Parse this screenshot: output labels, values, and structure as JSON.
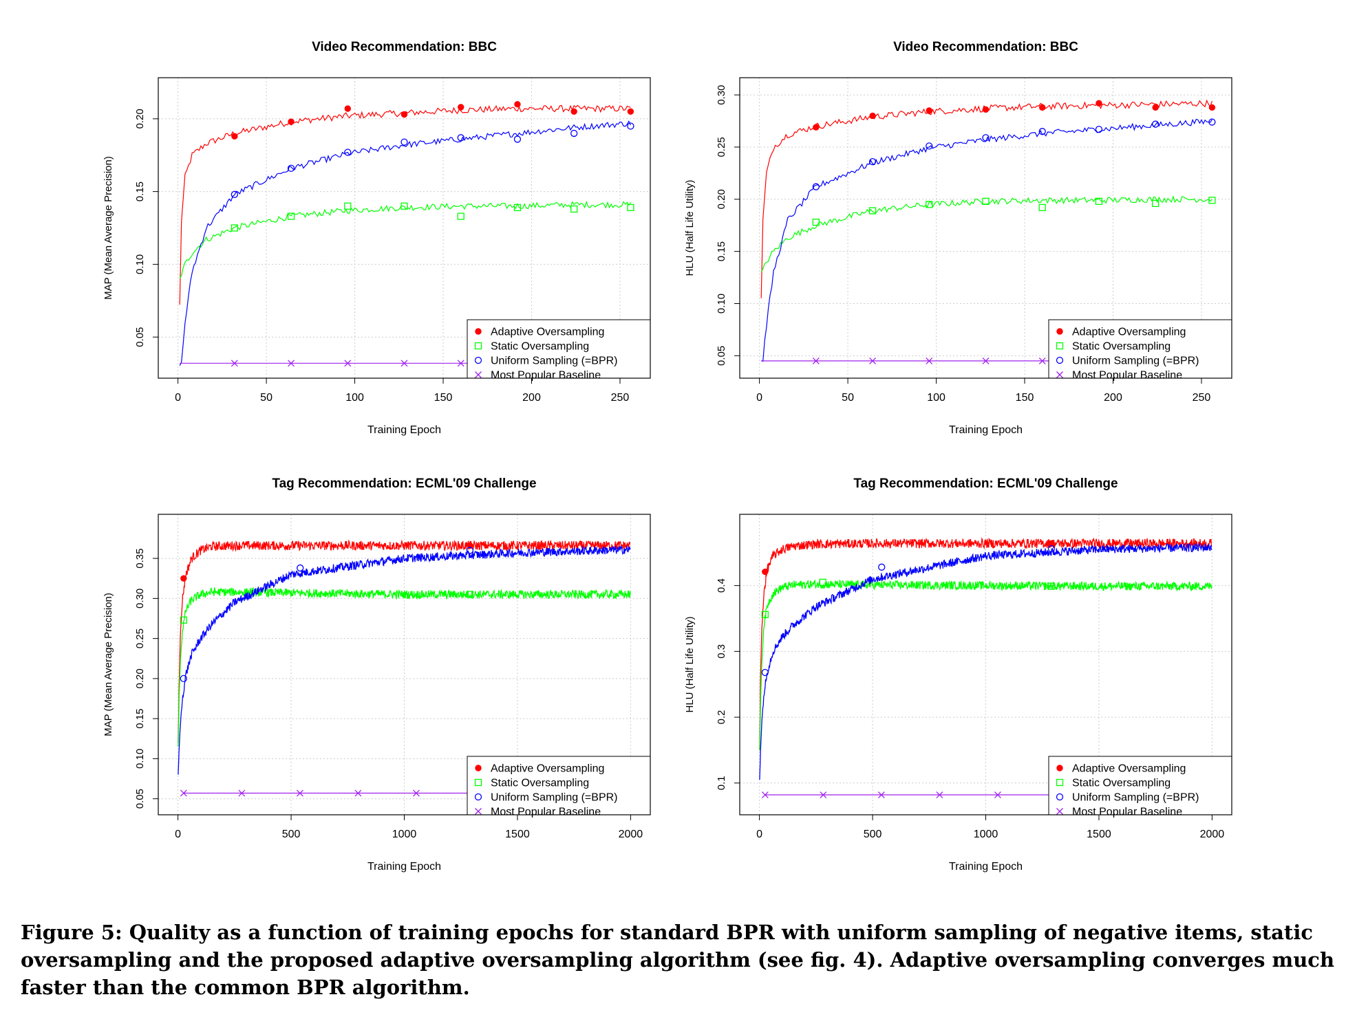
{
  "colors": {
    "adaptive": "#ff0000",
    "static": "#00ff00",
    "uniform": "#0000ff",
    "baseline": "#a020f0",
    "grid": "#cccccc"
  },
  "legend": {
    "placement": "bottom-right",
    "entries": [
      {
        "label": "Adaptive Oversampling",
        "marker": "filled-circle",
        "color": "#ff0000"
      },
      {
        "label": "Static Oversampling",
        "marker": "open-square",
        "color": "#00ff00"
      },
      {
        "label": "Uniform Sampling (=BPR)",
        "marker": "open-circle",
        "color": "#0000ff"
      },
      {
        "label": "Most Popular Baseline",
        "marker": "x-cross",
        "color": "#a020f0"
      }
    ]
  },
  "chart_data": [
    {
      "type": "line",
      "title": "Video Recommendation: BBC",
      "xlabel": "Training Epoch",
      "ylabel": "MAP (Mean Average Precision)",
      "xlim": [
        0,
        256
      ],
      "ylim": [
        0.03,
        0.22
      ],
      "xticks": [
        0,
        50,
        100,
        150,
        200,
        250
      ],
      "yticks": [
        0.05,
        0.1,
        0.15,
        0.2
      ],
      "ytick_labels": [
        "0.05",
        "0.10",
        "0.15",
        "0.20"
      ],
      "grid": true,
      "legend": "bottom-right",
      "series": [
        {
          "name": "Adaptive Oversampling",
          "key": "adaptive",
          "marker": "filled-circle",
          "x": [
            1,
            2,
            4,
            8,
            16,
            32,
            64,
            96,
            128,
            160,
            192,
            224,
            256
          ],
          "values": [
            0.072,
            0.13,
            0.16,
            0.175,
            0.183,
            0.19,
            0.198,
            0.202,
            0.204,
            0.206,
            0.207,
            0.207,
            0.207
          ],
          "markers_x": [
            32,
            64,
            96,
            128,
            160,
            192,
            224,
            256
          ],
          "markers_y": [
            0.188,
            0.198,
            0.207,
            0.203,
            0.208,
            0.21,
            0.205,
            0.205
          ]
        },
        {
          "name": "Static Oversampling",
          "key": "static",
          "marker": "open-square",
          "x": [
            1,
            2,
            4,
            8,
            16,
            32,
            64,
            96,
            128,
            160,
            192,
            224,
            256
          ],
          "values": [
            0.09,
            0.093,
            0.1,
            0.108,
            0.117,
            0.125,
            0.133,
            0.137,
            0.139,
            0.14,
            0.14,
            0.141,
            0.141
          ],
          "markers_x": [
            32,
            64,
            96,
            128,
            160,
            192,
            224,
            256
          ],
          "markers_y": [
            0.125,
            0.133,
            0.14,
            0.14,
            0.133,
            0.139,
            0.138,
            0.139
          ]
        },
        {
          "name": "Uniform Sampling (=BPR)",
          "key": "uniform",
          "marker": "open-circle",
          "x": [
            1,
            2,
            4,
            8,
            16,
            32,
            64,
            96,
            128,
            160,
            192,
            224,
            256
          ],
          "values": [
            0.031,
            0.032,
            0.06,
            0.095,
            0.125,
            0.148,
            0.166,
            0.176,
            0.182,
            0.186,
            0.19,
            0.194,
            0.197
          ],
          "markers_x": [
            32,
            64,
            96,
            128,
            160,
            192,
            224,
            256
          ],
          "markers_y": [
            0.148,
            0.166,
            0.177,
            0.184,
            0.187,
            0.186,
            0.19,
            0.195
          ]
        },
        {
          "name": "Most Popular Baseline",
          "key": "baseline",
          "marker": "x-cross",
          "x": [
            1,
            256
          ],
          "values": [
            0.032,
            0.032
          ],
          "markers_x": [
            32,
            64,
            96,
            128,
            160,
            192,
            224,
            256
          ],
          "markers_y": [
            0.032,
            0.032,
            0.032,
            0.032,
            0.032,
            0.032,
            0.032,
            0.032
          ]
        }
      ]
    },
    {
      "type": "line",
      "title": "Video Recommendation: BBC",
      "xlabel": "Training Epoch",
      "ylabel": "HLU (Half Life Utility)",
      "xlim": [
        0,
        256
      ],
      "ylim": [
        0.04,
        0.305
      ],
      "xticks": [
        0,
        50,
        100,
        150,
        200,
        250
      ],
      "yticks": [
        0.05,
        0.1,
        0.15,
        0.2,
        0.25,
        0.3
      ],
      "ytick_labels": [
        "0.05",
        "0.10",
        "0.15",
        "0.20",
        "0.25",
        "0.30"
      ],
      "grid": true,
      "legend": "bottom-right",
      "series": [
        {
          "name": "Adaptive Oversampling",
          "key": "adaptive",
          "marker": "filled-circle",
          "x": [
            1,
            2,
            4,
            8,
            16,
            32,
            64,
            96,
            128,
            160,
            192,
            224,
            256
          ],
          "values": [
            0.105,
            0.18,
            0.225,
            0.25,
            0.262,
            0.27,
            0.279,
            0.284,
            0.287,
            0.289,
            0.29,
            0.291,
            0.292
          ],
          "markers_x": [
            32,
            64,
            96,
            128,
            160,
            192,
            224,
            256
          ],
          "markers_y": [
            0.269,
            0.28,
            0.285,
            0.286,
            0.288,
            0.292,
            0.288,
            0.288
          ]
        },
        {
          "name": "Static Oversampling",
          "key": "static",
          "marker": "open-square",
          "x": [
            1,
            2,
            4,
            8,
            16,
            32,
            64,
            96,
            128,
            160,
            192,
            224,
            256
          ],
          "values": [
            0.13,
            0.132,
            0.14,
            0.15,
            0.163,
            0.175,
            0.189,
            0.195,
            0.198,
            0.199,
            0.199,
            0.2,
            0.2
          ],
          "markers_x": [
            32,
            64,
            96,
            128,
            160,
            192,
            224,
            256
          ],
          "markers_y": [
            0.178,
            0.189,
            0.195,
            0.198,
            0.192,
            0.198,
            0.196,
            0.199
          ]
        },
        {
          "name": "Uniform Sampling (=BPR)",
          "key": "uniform",
          "marker": "open-circle",
          "x": [
            1,
            2,
            4,
            8,
            16,
            32,
            64,
            96,
            128,
            160,
            192,
            224,
            256
          ],
          "values": [
            0.045,
            0.046,
            0.08,
            0.13,
            0.18,
            0.212,
            0.235,
            0.249,
            0.257,
            0.263,
            0.267,
            0.271,
            0.275
          ],
          "markers_x": [
            32,
            64,
            96,
            128,
            160,
            192,
            224,
            256
          ],
          "markers_y": [
            0.212,
            0.236,
            0.251,
            0.259,
            0.265,
            0.267,
            0.272,
            0.274
          ]
        },
        {
          "name": "Most Popular Baseline",
          "key": "baseline",
          "marker": "x-cross",
          "x": [
            1,
            256
          ],
          "values": [
            0.045,
            0.045
          ],
          "markers_x": [
            32,
            64,
            96,
            128,
            160,
            192,
            224,
            256
          ],
          "markers_y": [
            0.045,
            0.045,
            0.045,
            0.045,
            0.045,
            0.045,
            0.045,
            0.045
          ]
        }
      ]
    },
    {
      "type": "line",
      "title": "Tag Recommendation: ECML'09 Challenge",
      "xlabel": "Training Epoch",
      "ylabel": "MAP (Mean Average Precision)",
      "xlim": [
        0,
        2000
      ],
      "ylim": [
        0.045,
        0.39
      ],
      "xticks": [
        0,
        500,
        1000,
        1500,
        2000
      ],
      "yticks": [
        0.05,
        0.1,
        0.15,
        0.2,
        0.25,
        0.3,
        0.35
      ],
      "ytick_labels": [
        "0.05",
        "0.10",
        "0.15",
        "0.20",
        "0.25",
        "0.30",
        "0.35"
      ],
      "grid": true,
      "legend": "bottom-right",
      "series": [
        {
          "name": "Adaptive Oversampling",
          "key": "adaptive",
          "marker": "filled-circle",
          "x": [
            1,
            5,
            10,
            20,
            35,
            60,
            100,
            150,
            250,
            500,
            1000,
            1500,
            2000
          ],
          "values": [
            0.12,
            0.19,
            0.25,
            0.3,
            0.33,
            0.35,
            0.36,
            0.365,
            0.366,
            0.366,
            0.366,
            0.366,
            0.366
          ],
          "markers_x": [
            25,
            1290
          ],
          "markers_y": [
            0.325,
            0.366
          ]
        },
        {
          "name": "Static Oversampling",
          "key": "static",
          "marker": "open-square",
          "x": [
            1,
            5,
            10,
            20,
            35,
            60,
            100,
            150,
            250,
            500,
            1000,
            1500,
            2000
          ],
          "values": [
            0.115,
            0.17,
            0.22,
            0.26,
            0.285,
            0.298,
            0.305,
            0.308,
            0.308,
            0.307,
            0.305,
            0.305,
            0.305
          ],
          "markers_x": [
            25,
            1290
          ],
          "markers_y": [
            0.273,
            0.305
          ]
        },
        {
          "name": "Uniform Sampling (=BPR)",
          "key": "uniform",
          "marker": "open-circle",
          "x": [
            1,
            5,
            10,
            20,
            35,
            60,
            100,
            150,
            250,
            500,
            1000,
            1500,
            2000
          ],
          "values": [
            0.08,
            0.11,
            0.14,
            0.175,
            0.205,
            0.23,
            0.25,
            0.268,
            0.295,
            0.33,
            0.35,
            0.357,
            0.361
          ],
          "markers_x": [
            25,
            540,
            1290
          ],
          "markers_y": [
            0.2,
            0.338,
            0.36
          ]
        },
        {
          "name": "Most Popular Baseline",
          "key": "baseline",
          "marker": "x-cross",
          "x": [
            25,
            2000
          ],
          "values": [
            0.057,
            0.057
          ],
          "markers_x": [
            25,
            282,
            539,
            796,
            1053,
            1310
          ],
          "markers_y": [
            0.057,
            0.057,
            0.057,
            0.057,
            0.057,
            0.057
          ]
        }
      ]
    },
    {
      "type": "line",
      "title": "Tag Recommendation: ECML'09 Challenge",
      "xlabel": "Training Epoch",
      "ylabel": "HLU (Half Life Utility)",
      "xlim": [
        0,
        2000
      ],
      "ylim": [
        0.07,
        0.49
      ],
      "xticks": [
        0,
        500,
        1000,
        1500,
        2000
      ],
      "yticks": [
        0.1,
        0.2,
        0.3,
        0.4
      ],
      "ytick_labels": [
        "0.1",
        "0.2",
        "0.3",
        "0.4"
      ],
      "grid": true,
      "legend": "bottom-right",
      "series": [
        {
          "name": "Adaptive Oversampling",
          "key": "adaptive",
          "marker": "filled-circle",
          "x": [
            1,
            5,
            10,
            20,
            35,
            60,
            100,
            150,
            250,
            500,
            1000,
            1500,
            2000
          ],
          "values": [
            0.15,
            0.26,
            0.33,
            0.39,
            0.425,
            0.445,
            0.455,
            0.46,
            0.463,
            0.464,
            0.464,
            0.464,
            0.464
          ],
          "markers_x": [
            25,
            1290
          ],
          "markers_y": [
            0.421,
            0.464
          ]
        },
        {
          "name": "Static Oversampling",
          "key": "static",
          "marker": "open-square",
          "x": [
            1,
            5,
            10,
            20,
            35,
            60,
            100,
            150,
            250,
            500,
            1000,
            1500,
            2000
          ],
          "values": [
            0.15,
            0.22,
            0.28,
            0.34,
            0.37,
            0.388,
            0.397,
            0.401,
            0.402,
            0.401,
            0.4,
            0.399,
            0.399
          ],
          "markers_x": [
            25,
            280,
            1290
          ],
          "markers_y": [
            0.356,
            0.405,
            0.399
          ]
        },
        {
          "name": "Uniform Sampling (=BPR)",
          "key": "uniform",
          "marker": "open-circle",
          "x": [
            1,
            5,
            10,
            20,
            35,
            60,
            100,
            150,
            250,
            500,
            1000,
            1500,
            2000
          ],
          "values": [
            0.105,
            0.15,
            0.19,
            0.235,
            0.27,
            0.3,
            0.322,
            0.34,
            0.368,
            0.41,
            0.445,
            0.455,
            0.458
          ],
          "markers_x": [
            25,
            540,
            1290
          ],
          "markers_y": [
            0.268,
            0.428,
            0.456
          ]
        },
        {
          "name": "Most Popular Baseline",
          "key": "baseline",
          "marker": "x-cross",
          "x": [
            25,
            2000
          ],
          "values": [
            0.082,
            0.082
          ],
          "markers_x": [
            25,
            282,
            539,
            796,
            1053,
            1310
          ],
          "markers_y": [
            0.082,
            0.082,
            0.082,
            0.082,
            0.082,
            0.082
          ]
        }
      ]
    }
  ],
  "caption": "Figure 5: Quality as a function of training epochs for standard BPR with uniform sampling of negative items, static oversampling and the proposed adaptive oversampling algorithm (see fig. 4). Adaptive oversampling converges much faster than the common BPR algorithm."
}
